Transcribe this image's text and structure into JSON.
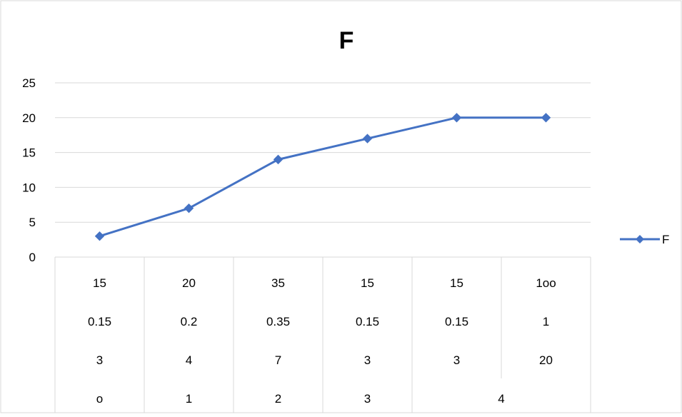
{
  "chart_data": {
    "type": "line",
    "title": "F",
    "ylim": [
      0,
      25
    ],
    "yticks": [
      "0",
      "5",
      "10",
      "15",
      "20",
      "25"
    ],
    "grid": "horizontal",
    "legend_position": "right",
    "x_category_rows": [
      [
        "15",
        "20",
        "35",
        "15",
        "15",
        "1oo"
      ],
      [
        "0.15",
        "0.2",
        "0.35",
        "0.15",
        "0.15",
        "1"
      ],
      [
        "3",
        "4",
        "7",
        "3",
        "3",
        "20"
      ]
    ],
    "x_group_row": [
      "o",
      "1",
      "2",
      "3",
      "4"
    ],
    "series": [
      {
        "name": "F",
        "values": [
          3,
          7,
          14,
          17,
          20,
          20
        ],
        "color": "#4472C4"
      }
    ]
  }
}
